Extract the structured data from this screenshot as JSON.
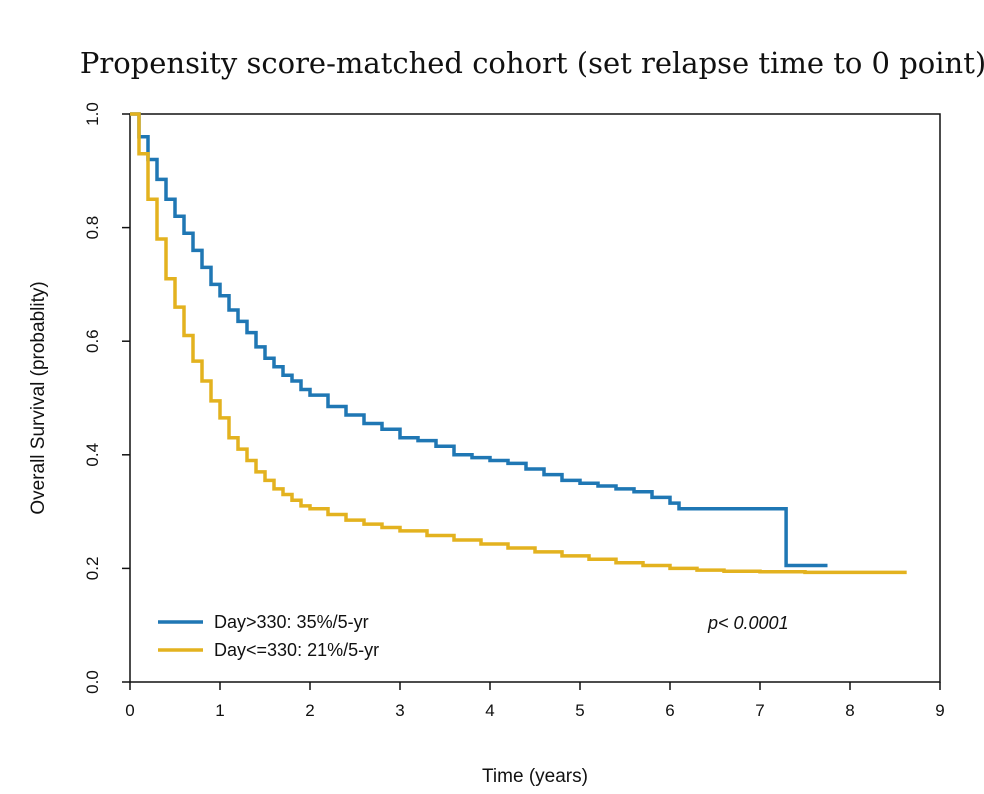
{
  "colors": {
    "series1": "#1f77b4",
    "series2": "#e3b21f"
  },
  "chart_data": {
    "type": "line",
    "title": "Propensity score-matched cohort (set relapse time to 0 point)",
    "xlabel": "Time (years)",
    "ylabel": "Overall Survival (probablity)",
    "xlim": [
      0,
      9
    ],
    "ylim": [
      0,
      1
    ],
    "xticks": [
      0,
      1,
      2,
      3,
      4,
      5,
      6,
      7,
      8,
      9
    ],
    "yticks": [
      "0.0",
      "0.2",
      "0.4",
      "0.6",
      "0.8",
      "1.0"
    ],
    "annotation": "p< 0.0001",
    "series": [
      {
        "name": "Day>330: 35%/5-yr",
        "x": [
          0,
          0.1,
          0.2,
          0.3,
          0.4,
          0.5,
          0.6,
          0.7,
          0.8,
          0.9,
          1.0,
          1.1,
          1.2,
          1.3,
          1.4,
          1.5,
          1.6,
          1.7,
          1.8,
          1.9,
          2.0,
          2.2,
          2.4,
          2.6,
          2.8,
          3.0,
          3.2,
          3.4,
          3.6,
          3.8,
          4.0,
          4.2,
          4.4,
          4.6,
          4.8,
          5.0,
          5.2,
          5.4,
          5.6,
          5.8,
          6.0,
          6.1,
          6.3,
          6.6,
          6.9,
          7.29,
          7.29,
          7.55,
          7.75
        ],
        "y": [
          1.0,
          0.96,
          0.92,
          0.885,
          0.85,
          0.82,
          0.79,
          0.76,
          0.73,
          0.7,
          0.68,
          0.655,
          0.635,
          0.615,
          0.59,
          0.57,
          0.555,
          0.54,
          0.53,
          0.515,
          0.505,
          0.485,
          0.47,
          0.455,
          0.445,
          0.43,
          0.425,
          0.415,
          0.4,
          0.395,
          0.39,
          0.385,
          0.375,
          0.365,
          0.355,
          0.35,
          0.345,
          0.34,
          0.335,
          0.325,
          0.315,
          0.305,
          0.305,
          0.305,
          0.305,
          0.305,
          0.205,
          0.205,
          0.205
        ]
      },
      {
        "name": "Day<=330: 21%/5-yr",
        "x": [
          0,
          0.1,
          0.2,
          0.3,
          0.4,
          0.5,
          0.6,
          0.7,
          0.8,
          0.9,
          1.0,
          1.1,
          1.2,
          1.3,
          1.4,
          1.5,
          1.6,
          1.7,
          1.8,
          1.9,
          2.0,
          2.2,
          2.4,
          2.6,
          2.8,
          3.0,
          3.3,
          3.6,
          3.9,
          4.2,
          4.5,
          4.8,
          5.1,
          5.4,
          5.7,
          6.0,
          6.3,
          6.6,
          7.0,
          7.5,
          8.0,
          8.3,
          8.63
        ],
        "y": [
          1.0,
          0.93,
          0.85,
          0.78,
          0.71,
          0.66,
          0.61,
          0.565,
          0.53,
          0.495,
          0.465,
          0.43,
          0.41,
          0.39,
          0.37,
          0.355,
          0.34,
          0.33,
          0.32,
          0.31,
          0.305,
          0.295,
          0.285,
          0.278,
          0.272,
          0.266,
          0.258,
          0.25,
          0.243,
          0.236,
          0.229,
          0.222,
          0.216,
          0.21,
          0.205,
          0.2,
          0.197,
          0.195,
          0.194,
          0.193,
          0.193,
          0.193,
          0.193
        ]
      }
    ],
    "legend": "bottom-left"
  }
}
